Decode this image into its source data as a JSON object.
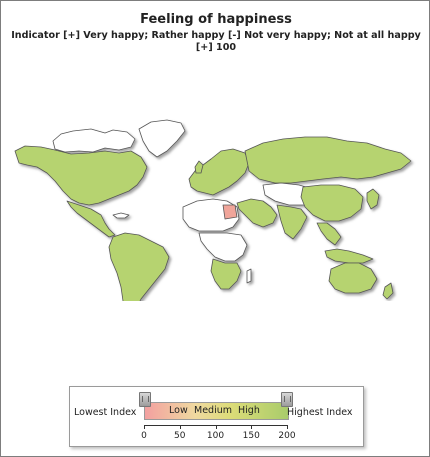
{
  "title": "Feeling of happiness",
  "subtitle": "Indicator [+] Very happy; Rather happy [-] Not very happy; Not at all happy [+] 100",
  "colors": {
    "high": "#b6d36f",
    "medium_high": "#c9d86f",
    "low": "#f0a59a",
    "no_data": "#ffffff",
    "border": "#555555",
    "shadow": "#aaaaaa"
  },
  "regions": [
    {
      "name": "North America",
      "status": "high"
    },
    {
      "name": "Mexico",
      "status": "high"
    },
    {
      "name": "South America",
      "status": "high"
    },
    {
      "name": "Europe",
      "status": "high"
    },
    {
      "name": "Russia",
      "status": "high"
    },
    {
      "name": "China",
      "status": "high"
    },
    {
      "name": "Japan",
      "status": "high"
    },
    {
      "name": "Australia",
      "status": "high"
    },
    {
      "name": "New Zealand",
      "status": "high"
    },
    {
      "name": "Southern Africa",
      "status": "high"
    },
    {
      "name": "Egypt",
      "status": "low"
    },
    {
      "name": "Greenland",
      "status": "no_data"
    },
    {
      "name": "Canada (north)",
      "status": "no_data"
    },
    {
      "name": "Central Asia",
      "status": "no_data"
    },
    {
      "name": "Central Africa",
      "status": "no_data"
    }
  ],
  "legend": {
    "low_label": "Lowest Index",
    "high_label": "Highest Index",
    "bands": [
      "Low",
      "Medium",
      "High"
    ],
    "ticks": [
      "0",
      "50",
      "100",
      "150",
      "200"
    ],
    "range": [
      0,
      200
    ]
  }
}
